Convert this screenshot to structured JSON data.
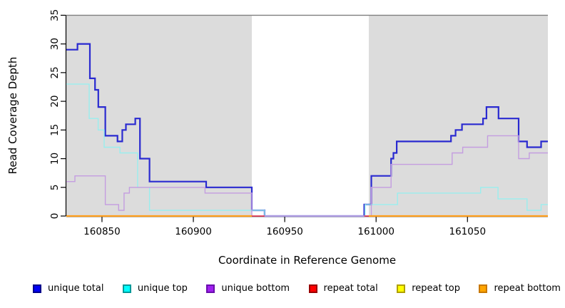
{
  "chart_data": {
    "type": "line",
    "subtype": "step-coverage",
    "title": "",
    "xlabel": "Coordinate in Reference Genome",
    "ylabel": "Read Coverage Depth",
    "xlim": [
      160830.5,
      161094
    ],
    "ylim": [
      0,
      35
    ],
    "xticks": [
      160850,
      160900,
      160950,
      161000,
      161050
    ],
    "yticks": [
      0,
      5,
      10,
      15,
      20,
      25,
      30,
      35
    ],
    "grid": false,
    "legend_position": "bottom",
    "shade_color": "#dcdcdc",
    "top_border_color": "#7f7f7f",
    "axis_color": "#000000",
    "shaded_regions": [
      [
        160830.5,
        160932
      ],
      [
        160996,
        161094
      ]
    ],
    "series": [
      {
        "name": "unique total",
        "line_color": "#2a2ad0",
        "line_width": 2.2,
        "legend_fill": "#0000f5",
        "legend_border": "#00008b",
        "segments": [
          [
            [
              160830.5,
              29
            ],
            [
              160836.6,
              30
            ],
            [
              160843.4,
              24
            ],
            [
              160846.2,
              22
            ],
            [
              160848,
              19
            ],
            [
              160851.8,
              14
            ],
            [
              160858.5,
              13
            ],
            [
              160861.1,
              15
            ],
            [
              160863.1,
              16
            ],
            [
              160868.2,
              17
            ],
            [
              160870.8,
              10
            ],
            [
              160876,
              6
            ],
            [
              160907,
              5
            ],
            [
              160932,
              1
            ],
            [
              160939,
              0
            ],
            [
              160993.5,
              2
            ],
            [
              160997.4,
              7
            ],
            [
              161008.2,
              10
            ],
            [
              161009.5,
              11
            ],
            [
              161011.3,
              13
            ],
            [
              161041,
              14
            ],
            [
              161043.5,
              15
            ],
            [
              161047,
              16
            ],
            [
              161058.5,
              17
            ],
            [
              161060.4,
              19
            ],
            [
              161067,
              17
            ],
            [
              161078,
              13
            ],
            [
              161082.6,
              12
            ],
            [
              161090.3,
              13
            ],
            [
              161094,
              13
            ]
          ]
        ]
      },
      {
        "name": "unique top",
        "line_color": "#99eeee",
        "line_width": 1.4,
        "legend_fill": "#00ffff",
        "legend_border": "#009999",
        "segments": [
          [
            [
              160830.5,
              23
            ],
            [
              160843,
              17
            ],
            [
              160847.9,
              15
            ],
            [
              160851.2,
              12
            ],
            [
              160859.8,
              11
            ],
            [
              160869.5,
              5
            ],
            [
              160876,
              1
            ],
            [
              160939,
              0
            ],
            [
              160994,
              2
            ],
            [
              161011.7,
              4
            ],
            [
              161057.2,
              5
            ],
            [
              161066.7,
              3
            ],
            [
              161082.6,
              1
            ],
            [
              161090.3,
              2
            ],
            [
              161094,
              2
            ]
          ]
        ]
      },
      {
        "name": "unique bottom",
        "line_color": "#c49de0",
        "line_width": 1.4,
        "legend_fill": "#a020f0",
        "legend_border": "#6a0dad",
        "segments": [
          [
            [
              160830.5,
              6
            ],
            [
              160835.2,
              7
            ],
            [
              160851.8,
              2
            ],
            [
              160859.1,
              1
            ],
            [
              160862.1,
              4
            ],
            [
              160865,
              5
            ],
            [
              160906.4,
              4
            ],
            [
              160932,
              0
            ],
            [
              160993.5,
              0
            ],
            [
              160997.4,
              5
            ],
            [
              161008.2,
              9
            ],
            [
              161041.6,
              11
            ],
            [
              161047.4,
              12
            ],
            [
              161061,
              14
            ],
            [
              161078,
              10
            ],
            [
              161083.8,
              11
            ],
            [
              161094,
              11
            ]
          ]
        ]
      },
      {
        "name": "repeat total",
        "line_color": "#ee3048",
        "line_width": 1.4,
        "legend_fill": "#ff0000",
        "legend_border": "#990000",
        "segments": [
          [
            [
              160830.5,
              0
            ],
            [
              160939,
              0
            ]
          ],
          [
            [
              160993.5,
              0
            ],
            [
              161094,
              0
            ]
          ]
        ]
      },
      {
        "name": "repeat top",
        "line_color": "#ffff00",
        "line_width": 1.4,
        "legend_fill": "#ffff00",
        "legend_border": "#b0a000",
        "segments": [
          [
            [
              160830.5,
              0
            ],
            [
              160932,
              0
            ]
          ],
          [
            [
              160996,
              0
            ],
            [
              161094,
              0
            ]
          ]
        ]
      },
      {
        "name": "repeat bottom",
        "line_color": "#ff9e1b",
        "line_width": 2.2,
        "legend_fill": "#ffa500",
        "legend_border": "#c87800",
        "segments": [
          [
            [
              160830.5,
              0
            ],
            [
              160932,
              0
            ]
          ],
          [
            [
              160996,
              0
            ],
            [
              161094,
              0
            ]
          ]
        ]
      }
    ],
    "legend": {
      "items": [
        {
          "label": "unique total",
          "fill": "#0000f5",
          "border": "#00008b"
        },
        {
          "label": "unique top",
          "fill": "#00ffff",
          "border": "#009999"
        },
        {
          "label": "unique bottom",
          "fill": "#a020f0",
          "border": "#6a0dad"
        },
        {
          "label": "repeat total",
          "fill": "#ff0000",
          "border": "#990000"
        },
        {
          "label": "repeat top",
          "fill": "#ffff00",
          "border": "#b0a000"
        },
        {
          "label": "repeat bottom",
          "fill": "#ffa500",
          "border": "#c87800"
        }
      ]
    }
  }
}
